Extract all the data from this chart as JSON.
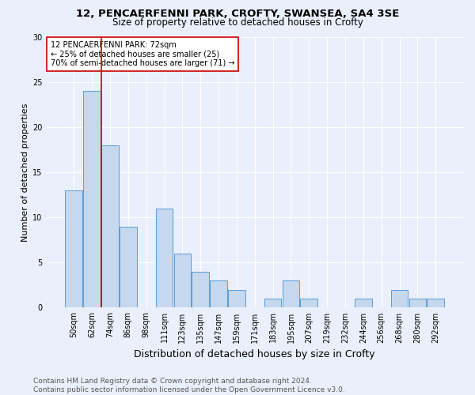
{
  "title1": "12, PENCAERFENNI PARK, CROFTY, SWANSEA, SA4 3SE",
  "title2": "Size of property relative to detached houses in Crofty",
  "xlabel": "Distribution of detached houses by size in Crofty",
  "ylabel": "Number of detached properties",
  "categories": [
    "50sqm",
    "62sqm",
    "74sqm",
    "86sqm",
    "98sqm",
    "111sqm",
    "123sqm",
    "135sqm",
    "147sqm",
    "159sqm",
    "171sqm",
    "183sqm",
    "195sqm",
    "207sqm",
    "219sqm",
    "232sqm",
    "244sqm",
    "256sqm",
    "268sqm",
    "280sqm",
    "292sqm"
  ],
  "values": [
    13,
    24,
    18,
    9,
    0,
    11,
    6,
    4,
    3,
    2,
    0,
    1,
    3,
    1,
    0,
    0,
    1,
    0,
    2,
    1,
    1
  ],
  "bar_color": "#c5d8ed",
  "bar_edge_color": "#5b9bd5",
  "vline_x": 1.5,
  "vline_color": "#cc0000",
  "annotation_text": "12 PENCAERFENNI PARK: 72sqm\n← 25% of detached houses are smaller (25)\n70% of semi-detached houses are larger (71) →",
  "annotation_box_color": "#ffffff",
  "annotation_box_edge": "#cc0000",
  "ylim": [
    0,
    30
  ],
  "yticks": [
    0,
    5,
    10,
    15,
    20,
    25,
    30
  ],
  "footer": "Contains HM Land Registry data © Crown copyright and database right 2024.\nContains public sector information licensed under the Open Government Licence v3.0.",
  "background_color": "#eaf0fb",
  "grid_color": "#ffffff",
  "title1_fontsize": 9.5,
  "title2_fontsize": 8.5,
  "xlabel_fontsize": 9,
  "ylabel_fontsize": 8,
  "tick_fontsize": 7,
  "annotation_fontsize": 7,
  "footer_fontsize": 6.5
}
